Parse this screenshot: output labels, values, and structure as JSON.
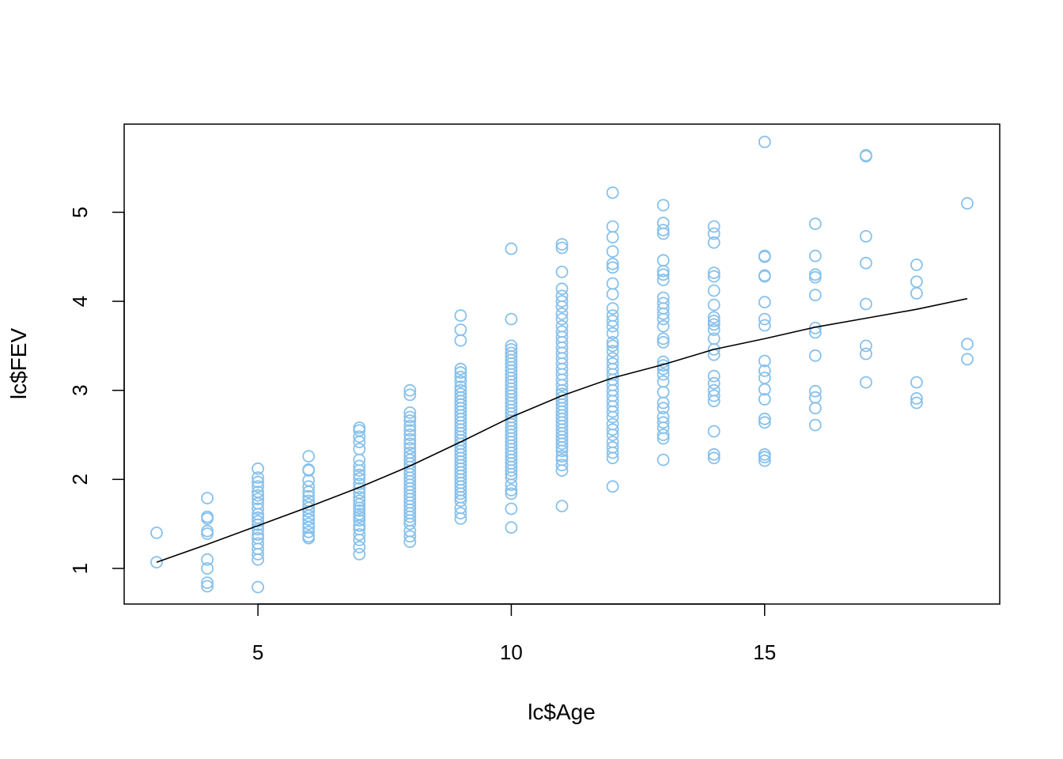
{
  "chart_data": {
    "type": "scatter",
    "title": "",
    "xlabel": "lc$Age",
    "ylabel": "lc$FEV",
    "xlim": [
      2.36,
      19.64
    ],
    "ylim": [
      0.6,
      5.99
    ],
    "xticks": [
      5,
      10,
      15
    ],
    "yticks": [
      1,
      2,
      3,
      4,
      5
    ],
    "grid": false,
    "point_color": "#87C1EC",
    "line_color": "#000000",
    "points": [
      [
        3,
        1.4
      ],
      [
        3,
        1.07
      ],
      [
        4,
        1.79
      ],
      [
        4,
        1.58
      ],
      [
        4,
        1.56
      ],
      [
        4,
        1.42
      ],
      [
        4,
        1.39
      ],
      [
        4,
        1.1
      ],
      [
        4,
        1.0
      ],
      [
        4,
        0.84
      ],
      [
        4,
        0.8
      ],
      [
        5,
        2.12
      ],
      [
        5,
        2.02
      ],
      [
        5,
        1.97
      ],
      [
        5,
        1.92
      ],
      [
        5,
        1.86
      ],
      [
        5,
        1.82
      ],
      [
        5,
        1.78
      ],
      [
        5,
        1.73
      ],
      [
        5,
        1.67
      ],
      [
        5,
        1.61
      ],
      [
        5,
        1.57
      ],
      [
        5,
        1.53
      ],
      [
        5,
        1.49
      ],
      [
        5,
        1.44
      ],
      [
        5,
        1.38
      ],
      [
        5,
        1.34
      ],
      [
        5,
        1.28
      ],
      [
        5,
        1.22
      ],
      [
        5,
        1.16
      ],
      [
        5,
        1.1
      ],
      [
        5,
        0.79
      ],
      [
        6,
        2.26
      ],
      [
        6,
        2.11
      ],
      [
        6,
        2.1
      ],
      [
        6,
        1.99
      ],
      [
        6,
        1.92
      ],
      [
        6,
        1.86
      ],
      [
        6,
        1.81
      ],
      [
        6,
        1.76
      ],
      [
        6,
        1.72
      ],
      [
        6,
        1.68
      ],
      [
        6,
        1.64
      ],
      [
        6,
        1.59
      ],
      [
        6,
        1.55
      ],
      [
        6,
        1.5
      ],
      [
        6,
        1.46
      ],
      [
        6,
        1.41
      ],
      [
        6,
        1.36
      ],
      [
        6,
        1.34
      ],
      [
        7,
        2.58
      ],
      [
        7,
        2.55
      ],
      [
        7,
        2.48
      ],
      [
        7,
        2.42
      ],
      [
        7,
        2.34
      ],
      [
        7,
        2.22
      ],
      [
        7,
        2.15
      ],
      [
        7,
        2.1
      ],
      [
        7,
        2.05
      ],
      [
        7,
        2.01
      ],
      [
        7,
        1.95
      ],
      [
        7,
        1.9
      ],
      [
        7,
        1.85
      ],
      [
        7,
        1.8
      ],
      [
        7,
        1.76
      ],
      [
        7,
        1.72
      ],
      [
        7,
        1.68
      ],
      [
        7,
        1.65
      ],
      [
        7,
        1.61
      ],
      [
        7,
        1.58
      ],
      [
        7,
        1.54
      ],
      [
        7,
        1.48
      ],
      [
        7,
        1.44
      ],
      [
        7,
        1.38
      ],
      [
        7,
        1.32
      ],
      [
        7,
        1.24
      ],
      [
        7,
        1.16
      ],
      [
        8,
        3.0
      ],
      [
        8,
        2.95
      ],
      [
        8,
        2.75
      ],
      [
        8,
        2.7
      ],
      [
        8,
        2.66
      ],
      [
        8,
        2.6
      ],
      [
        8,
        2.55
      ],
      [
        8,
        2.5
      ],
      [
        8,
        2.45
      ],
      [
        8,
        2.4
      ],
      [
        8,
        2.35
      ],
      [
        8,
        2.3
      ],
      [
        8,
        2.26
      ],
      [
        8,
        2.22
      ],
      [
        8,
        2.18
      ],
      [
        8,
        2.14
      ],
      [
        8,
        2.1
      ],
      [
        8,
        2.06
      ],
      [
        8,
        2.02
      ],
      [
        8,
        1.98
      ],
      [
        8,
        1.94
      ],
      [
        8,
        1.9
      ],
      [
        8,
        1.86
      ],
      [
        8,
        1.82
      ],
      [
        8,
        1.78
      ],
      [
        8,
        1.74
      ],
      [
        8,
        1.7
      ],
      [
        8,
        1.66
      ],
      [
        8,
        1.62
      ],
      [
        8,
        1.58
      ],
      [
        8,
        1.54
      ],
      [
        8,
        1.5
      ],
      [
        8,
        1.42
      ],
      [
        8,
        1.36
      ],
      [
        8,
        1.3
      ],
      [
        9,
        3.84
      ],
      [
        9,
        3.68
      ],
      [
        9,
        3.56
      ],
      [
        9,
        3.24
      ],
      [
        9,
        3.2
      ],
      [
        9,
        3.15
      ],
      [
        9,
        3.1
      ],
      [
        9,
        3.04
      ],
      [
        9,
        3.0
      ],
      [
        9,
        2.96
      ],
      [
        9,
        2.92
      ],
      [
        9,
        2.88
      ],
      [
        9,
        2.84
      ],
      [
        9,
        2.8
      ],
      [
        9,
        2.76
      ],
      [
        9,
        2.72
      ],
      [
        9,
        2.68
      ],
      [
        9,
        2.64
      ],
      [
        9,
        2.6
      ],
      [
        9,
        2.56
      ],
      [
        9,
        2.52
      ],
      [
        9,
        2.48
      ],
      [
        9,
        2.44
      ],
      [
        9,
        2.4
      ],
      [
        9,
        2.36
      ],
      [
        9,
        2.32
      ],
      [
        9,
        2.28
      ],
      [
        9,
        2.24
      ],
      [
        9,
        2.2
      ],
      [
        9,
        2.16
      ],
      [
        9,
        2.12
      ],
      [
        9,
        2.08
      ],
      [
        9,
        2.04
      ],
      [
        9,
        2.0
      ],
      [
        9,
        1.96
      ],
      [
        9,
        1.92
      ],
      [
        9,
        1.88
      ],
      [
        9,
        1.84
      ],
      [
        9,
        1.8
      ],
      [
        9,
        1.76
      ],
      [
        9,
        1.68
      ],
      [
        9,
        1.62
      ],
      [
        9,
        1.56
      ],
      [
        10,
        4.59
      ],
      [
        10,
        3.8
      ],
      [
        10,
        3.5
      ],
      [
        10,
        3.46
      ],
      [
        10,
        3.42
      ],
      [
        10,
        3.38
      ],
      [
        10,
        3.34
      ],
      [
        10,
        3.3
      ],
      [
        10,
        3.26
      ],
      [
        10,
        3.22
      ],
      [
        10,
        3.18
      ],
      [
        10,
        3.14
      ],
      [
        10,
        3.1
      ],
      [
        10,
        3.06
      ],
      [
        10,
        3.02
      ],
      [
        10,
        2.98
      ],
      [
        10,
        2.94
      ],
      [
        10,
        2.9
      ],
      [
        10,
        2.86
      ],
      [
        10,
        2.82
      ],
      [
        10,
        2.78
      ],
      [
        10,
        2.74
      ],
      [
        10,
        2.7
      ],
      [
        10,
        2.66
      ],
      [
        10,
        2.62
      ],
      [
        10,
        2.58
      ],
      [
        10,
        2.54
      ],
      [
        10,
        2.5
      ],
      [
        10,
        2.46
      ],
      [
        10,
        2.42
      ],
      [
        10,
        2.38
      ],
      [
        10,
        2.34
      ],
      [
        10,
        2.3
      ],
      [
        10,
        2.26
      ],
      [
        10,
        2.22
      ],
      [
        10,
        2.18
      ],
      [
        10,
        2.14
      ],
      [
        10,
        2.1
      ],
      [
        10,
        2.06
      ],
      [
        10,
        2.02
      ],
      [
        10,
        1.94
      ],
      [
        10,
        1.88
      ],
      [
        10,
        1.84
      ],
      [
        10,
        1.67
      ],
      [
        10,
        1.46
      ],
      [
        11,
        4.64
      ],
      [
        11,
        4.6
      ],
      [
        11,
        4.33
      ],
      [
        11,
        4.14
      ],
      [
        11,
        4.06
      ],
      [
        11,
        4.0
      ],
      [
        11,
        3.94
      ],
      [
        11,
        3.86
      ],
      [
        11,
        3.8
      ],
      [
        11,
        3.72
      ],
      [
        11,
        3.66
      ],
      [
        11,
        3.6
      ],
      [
        11,
        3.54
      ],
      [
        11,
        3.48
      ],
      [
        11,
        3.42
      ],
      [
        11,
        3.36
      ],
      [
        11,
        3.3
      ],
      [
        11,
        3.24
      ],
      [
        11,
        3.18
      ],
      [
        11,
        3.12
      ],
      [
        11,
        3.06
      ],
      [
        11,
        3.0
      ],
      [
        11,
        2.96
      ],
      [
        11,
        2.92
      ],
      [
        11,
        2.88
      ],
      [
        11,
        2.84
      ],
      [
        11,
        2.8
      ],
      [
        11,
        2.76
      ],
      [
        11,
        2.72
      ],
      [
        11,
        2.68
      ],
      [
        11,
        2.64
      ],
      [
        11,
        2.6
      ],
      [
        11,
        2.56
      ],
      [
        11,
        2.52
      ],
      [
        11,
        2.48
      ],
      [
        11,
        2.44
      ],
      [
        11,
        2.4
      ],
      [
        11,
        2.36
      ],
      [
        11,
        2.32
      ],
      [
        11,
        2.26
      ],
      [
        11,
        2.22
      ],
      [
        11,
        2.16
      ],
      [
        11,
        2.1
      ],
      [
        11,
        1.7
      ],
      [
        12,
        5.22
      ],
      [
        12,
        4.84
      ],
      [
        12,
        4.72
      ],
      [
        12,
        4.56
      ],
      [
        12,
        4.42
      ],
      [
        12,
        4.38
      ],
      [
        12,
        4.2
      ],
      [
        12,
        4.08
      ],
      [
        12,
        3.92
      ],
      [
        12,
        3.84
      ],
      [
        12,
        3.78
      ],
      [
        12,
        3.72
      ],
      [
        12,
        3.64
      ],
      [
        12,
        3.54
      ],
      [
        12,
        3.5
      ],
      [
        12,
        3.44
      ],
      [
        12,
        3.36
      ],
      [
        12,
        3.3
      ],
      [
        12,
        3.24
      ],
      [
        12,
        3.18
      ],
      [
        12,
        3.12
      ],
      [
        12,
        3.06
      ],
      [
        12,
        3.0
      ],
      [
        12,
        2.94
      ],
      [
        12,
        2.88
      ],
      [
        12,
        2.82
      ],
      [
        12,
        2.76
      ],
      [
        12,
        2.7
      ],
      [
        12,
        2.62
      ],
      [
        12,
        2.56
      ],
      [
        12,
        2.5
      ],
      [
        12,
        2.42
      ],
      [
        12,
        2.36
      ],
      [
        12,
        2.3
      ],
      [
        12,
        2.24
      ],
      [
        12,
        1.92
      ],
      [
        13,
        5.08
      ],
      [
        13,
        4.88
      ],
      [
        13,
        4.8
      ],
      [
        13,
        4.76
      ],
      [
        13,
        4.46
      ],
      [
        13,
        4.34
      ],
      [
        13,
        4.3
      ],
      [
        13,
        4.24
      ],
      [
        13,
        4.04
      ],
      [
        13,
        3.98
      ],
      [
        13,
        3.92
      ],
      [
        13,
        3.86
      ],
      [
        13,
        3.8
      ],
      [
        13,
        3.72
      ],
      [
        13,
        3.58
      ],
      [
        13,
        3.54
      ],
      [
        13,
        3.32
      ],
      [
        13,
        3.28
      ],
      [
        13,
        3.24
      ],
      [
        13,
        3.18
      ],
      [
        13,
        3.1
      ],
      [
        13,
        2.98
      ],
      [
        13,
        2.86
      ],
      [
        13,
        2.8
      ],
      [
        13,
        2.7
      ],
      [
        13,
        2.64
      ],
      [
        13,
        2.58
      ],
      [
        13,
        2.5
      ],
      [
        13,
        2.46
      ],
      [
        13,
        2.22
      ],
      [
        14,
        4.84
      ],
      [
        14,
        4.76
      ],
      [
        14,
        4.66
      ],
      [
        14,
        4.32
      ],
      [
        14,
        4.28
      ],
      [
        14,
        4.12
      ],
      [
        14,
        3.96
      ],
      [
        14,
        3.82
      ],
      [
        14,
        3.78
      ],
      [
        14,
        3.74
      ],
      [
        14,
        3.68
      ],
      [
        14,
        3.58
      ],
      [
        14,
        3.46
      ],
      [
        14,
        3.4
      ],
      [
        14,
        3.16
      ],
      [
        14,
        3.08
      ],
      [
        14,
        3.0
      ],
      [
        14,
        2.94
      ],
      [
        14,
        2.88
      ],
      [
        14,
        2.54
      ],
      [
        14,
        2.28
      ],
      [
        14,
        2.24
      ],
      [
        15,
        5.79
      ],
      [
        15,
        4.51
      ],
      [
        15,
        4.5
      ],
      [
        15,
        4.29
      ],
      [
        15,
        4.28
      ],
      [
        15,
        3.99
      ],
      [
        15,
        3.8
      ],
      [
        15,
        3.73
      ],
      [
        15,
        3.33
      ],
      [
        15,
        3.22
      ],
      [
        15,
        3.14
      ],
      [
        15,
        3.01
      ],
      [
        15,
        2.9
      ],
      [
        15,
        2.68
      ],
      [
        15,
        2.64
      ],
      [
        15,
        2.28
      ],
      [
        15,
        2.25
      ],
      [
        15,
        2.21
      ],
      [
        16,
        4.87
      ],
      [
        16,
        4.51
      ],
      [
        16,
        4.3
      ],
      [
        16,
        4.27
      ],
      [
        16,
        4.07
      ],
      [
        16,
        3.7
      ],
      [
        16,
        3.65
      ],
      [
        16,
        3.39
      ],
      [
        16,
        2.99
      ],
      [
        16,
        2.92
      ],
      [
        16,
        2.8
      ],
      [
        16,
        2.61
      ],
      [
        17,
        5.64
      ],
      [
        17,
        5.63
      ],
      [
        17,
        4.73
      ],
      [
        17,
        4.43
      ],
      [
        17,
        3.97
      ],
      [
        17,
        3.5
      ],
      [
        17,
        3.41
      ],
      [
        17,
        3.09
      ],
      [
        18,
        4.41
      ],
      [
        18,
        4.22
      ],
      [
        18,
        4.09
      ],
      [
        18,
        3.09
      ],
      [
        18,
        2.91
      ],
      [
        18,
        2.86
      ],
      [
        19,
        5.1
      ],
      [
        19,
        3.52
      ],
      [
        19,
        3.35
      ]
    ],
    "line": [
      [
        3,
        1.07
      ],
      [
        4,
        1.27
      ],
      [
        5,
        1.48
      ],
      [
        6,
        1.69
      ],
      [
        7,
        1.91
      ],
      [
        8,
        2.15
      ],
      [
        9,
        2.42
      ],
      [
        10,
        2.7
      ],
      [
        11,
        2.94
      ],
      [
        12,
        3.14
      ],
      [
        13,
        3.29
      ],
      [
        14,
        3.46
      ],
      [
        15,
        3.58
      ],
      [
        16,
        3.71
      ],
      [
        17,
        3.81
      ],
      [
        18,
        3.91
      ],
      [
        19,
        4.03
      ]
    ]
  }
}
